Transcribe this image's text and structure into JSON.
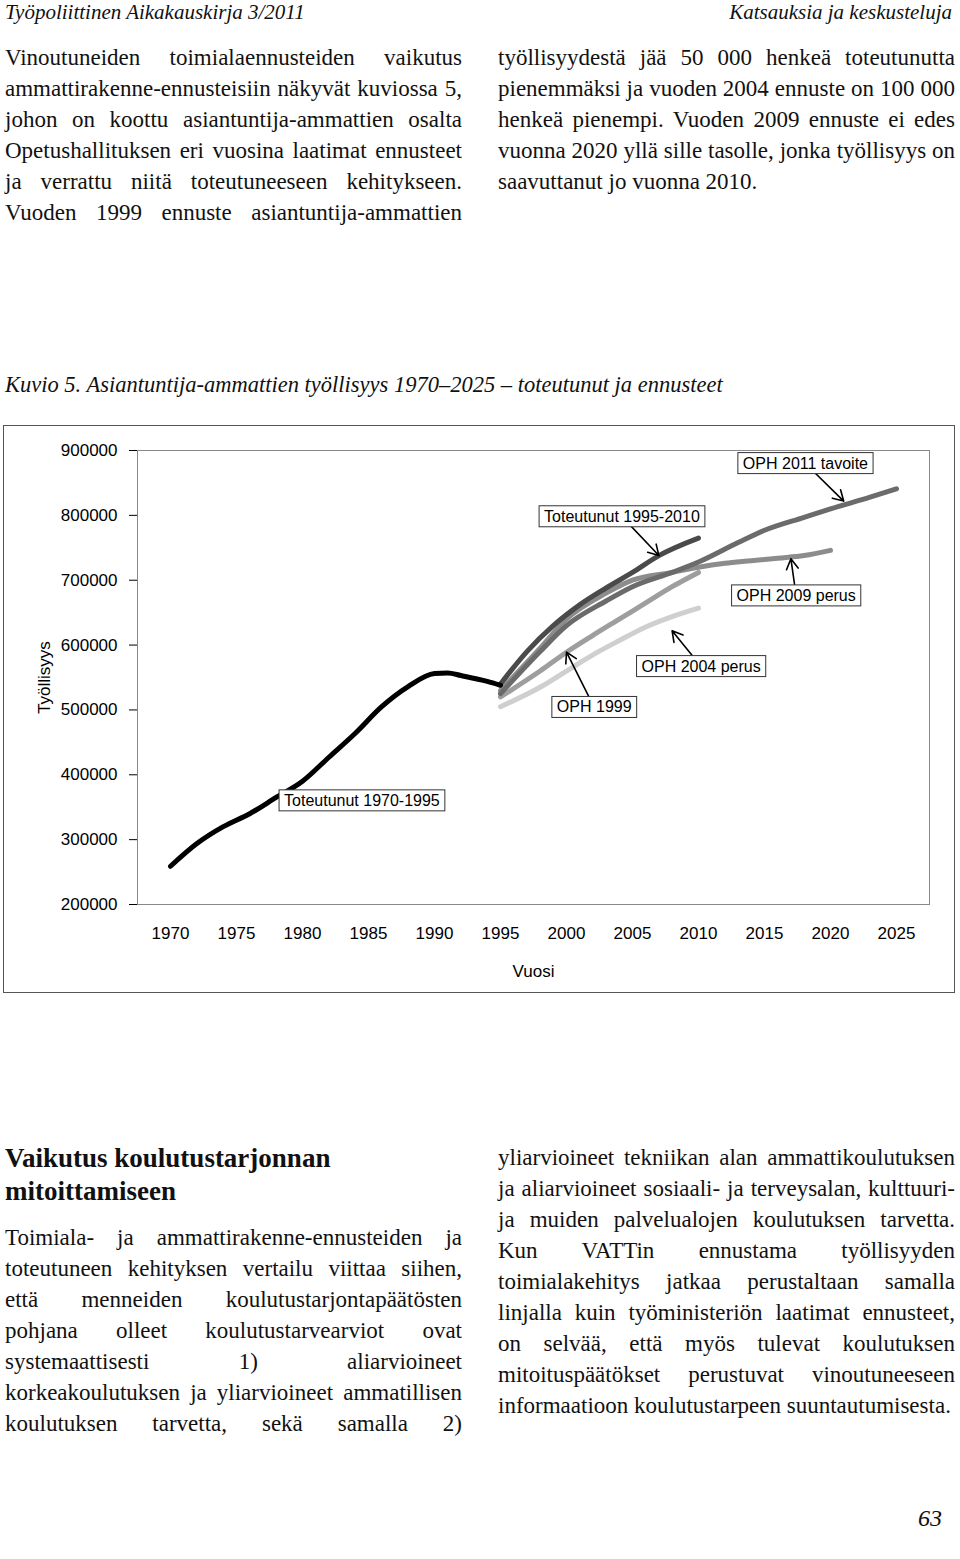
{
  "header": {
    "left": "Työpoliittinen Aikakauskirja 3/2011",
    "right": "Katsauksia ja keskusteluja"
  },
  "intro": "Vinoutuneiden toimialaennusteiden vaikutus ammattirakenne-ennusteisiin näkyvät kuviossa 5, johon on koottu asiantuntija-ammattien osalta Opetushallituksen eri vuosina laatimat ennusteet ja verrattu niitä toteutuneeseen kehitykseen. Vuoden 1999 ennuste asiantuntija-ammattien työllisyydestä jää 50 000 henkeä toteutunutta pienemmäksi ja vuoden 2004 ennuste on 100 000 henkeä pienempi. Vuoden 2009 ennuste ei edes vuonna 2020 yllä sille tasolle, jonka työllisyys on saavuttanut jo vuonna 2010.",
  "chart_data": {
    "type": "line",
    "title": "Kuvio 5. Asiantuntija-ammattien työllisyys 1970–2025 – toteutunut ja ennusteet",
    "x_label": "Vuosi",
    "y_label": "Työllisyys",
    "xlim": [
      1967.5,
      2027.5
    ],
    "xticks": [
      1970,
      1975,
      1980,
      1985,
      1990,
      1995,
      2000,
      2005,
      2010,
      2015,
      2020,
      2025
    ],
    "ylim": [
      200000,
      900000
    ],
    "yticks": [
      200000,
      300000,
      400000,
      500000,
      600000,
      700000,
      800000,
      900000
    ],
    "grid": false,
    "series": [
      {
        "name": "OPH 2004 perus",
        "color": "#cfcfcf",
        "x": [
          1995,
          1998,
          2000,
          2002,
          2004,
          2006,
          2008,
          2010
        ],
        "values": [
          505000,
          535000,
          560000,
          585000,
          607000,
          628000,
          644000,
          657000
        ]
      },
      {
        "name": "OPH 1999",
        "color": "#9e9e9e",
        "x": [
          1995,
          1998,
          2000,
          2002,
          2004,
          2006,
          2008,
          2010
        ],
        "values": [
          520000,
          560000,
          589000,
          615000,
          640000,
          665000,
          690000,
          712000
        ]
      },
      {
        "name": "OPH 2009 perus",
        "color": "#8c8c8c",
        "x": [
          1995,
          1998,
          2000,
          2003,
          2005,
          2008,
          2010,
          2012,
          2014,
          2016,
          2018,
          2020
        ],
        "values": [
          530000,
          595000,
          640000,
          680000,
          700000,
          712000,
          720000,
          726000,
          730000,
          734000,
          738000,
          746000
        ]
      },
      {
        "name": "OPH 2011 tavoite",
        "color": "#6b6b6b",
        "x": [
          1995,
          1998,
          2000,
          2003,
          2005,
          2008,
          2010,
          2013,
          2015,
          2018,
          2020,
          2023,
          2025
        ],
        "values": [
          525000,
          590000,
          630000,
          668000,
          690000,
          712000,
          728000,
          758000,
          777000,
          797000,
          810000,
          828000,
          841000
        ]
      },
      {
        "name": "Toteutunut 1995-2010",
        "color": "#4a4a4a",
        "x": [
          1995,
          1997,
          1999,
          2001,
          2003,
          2005,
          2007,
          2010
        ],
        "values": [
          540000,
          590000,
          630000,
          662000,
          688000,
          712000,
          738000,
          765000
        ]
      },
      {
        "name": "Toteutunut 1970-1995",
        "color": "#000000",
        "x": [
          1970,
          1972,
          1974,
          1976,
          1978,
          1980,
          1982,
          1984,
          1986,
          1988,
          1990,
          1991,
          1992,
          1994,
          1995
        ],
        "values": [
          259000,
          294000,
          320000,
          340000,
          365000,
          390000,
          427000,
          464000,
          505000,
          536000,
          556000,
          557000,
          553000,
          544000,
          538000
        ]
      }
    ],
    "annotations": [
      {
        "text": "OPH 2011 tavoite",
        "x": 2018.1,
        "y": 880000,
        "arrow_to": [
          2021,
          822000
        ]
      },
      {
        "text": "Toteutunut 1995-2010",
        "x": 2004.2,
        "y": 798000,
        "arrow_to": [
          2007,
          738000
        ]
      },
      {
        "text": "OPH 2009 perus",
        "x": 2017.4,
        "y": 676000,
        "arrow_to": [
          2017,
          733000
        ]
      },
      {
        "text": "OPH 2004 perus",
        "x": 2010.2,
        "y": 567000,
        "arrow_to": [
          2008,
          622000
        ]
      },
      {
        "text": "OPH 1999",
        "x": 2002.1,
        "y": 504000,
        "arrow_to": [
          2000,
          589000
        ]
      },
      {
        "text": "Toteutunut 1970-1995",
        "x": 1984.5,
        "y": 360000
      }
    ]
  },
  "section": {
    "heading": "Vaikutus koulutustarjonnan mitoittamiseen",
    "text": "Toimiala- ja ammattirakenne-ennusteiden ja toteutuneen kehityksen vertailu viittaa siihen, että menneiden koulutustarjontapäätösten pohjana olleet koulutustarvearviot ovat systemaattisesti 1) aliarvioineet korkeakoulutuksen ja yliarvioineet ammatillisen koulutuksen tarvetta, sekä samalla 2) yliarvioineet tekniikan alan ammattikoulutuksen ja aliarvioineet sosiaali- ja terveysalan, kulttuuri- ja muiden palvelualojen koulutuksen tarvetta. Kun VATTin ennustama työllisyyden toimialakehitys jatkaa perustaltaan samalla linjalla kuin työministeriön laatimat ennusteet, on selvää, että myös tulevat koulutuksen mitoituspäätökset perustuvat vinoutuneeseen informaatioon koulutustarpeen suuntautumisesta."
  },
  "page_number": "63"
}
